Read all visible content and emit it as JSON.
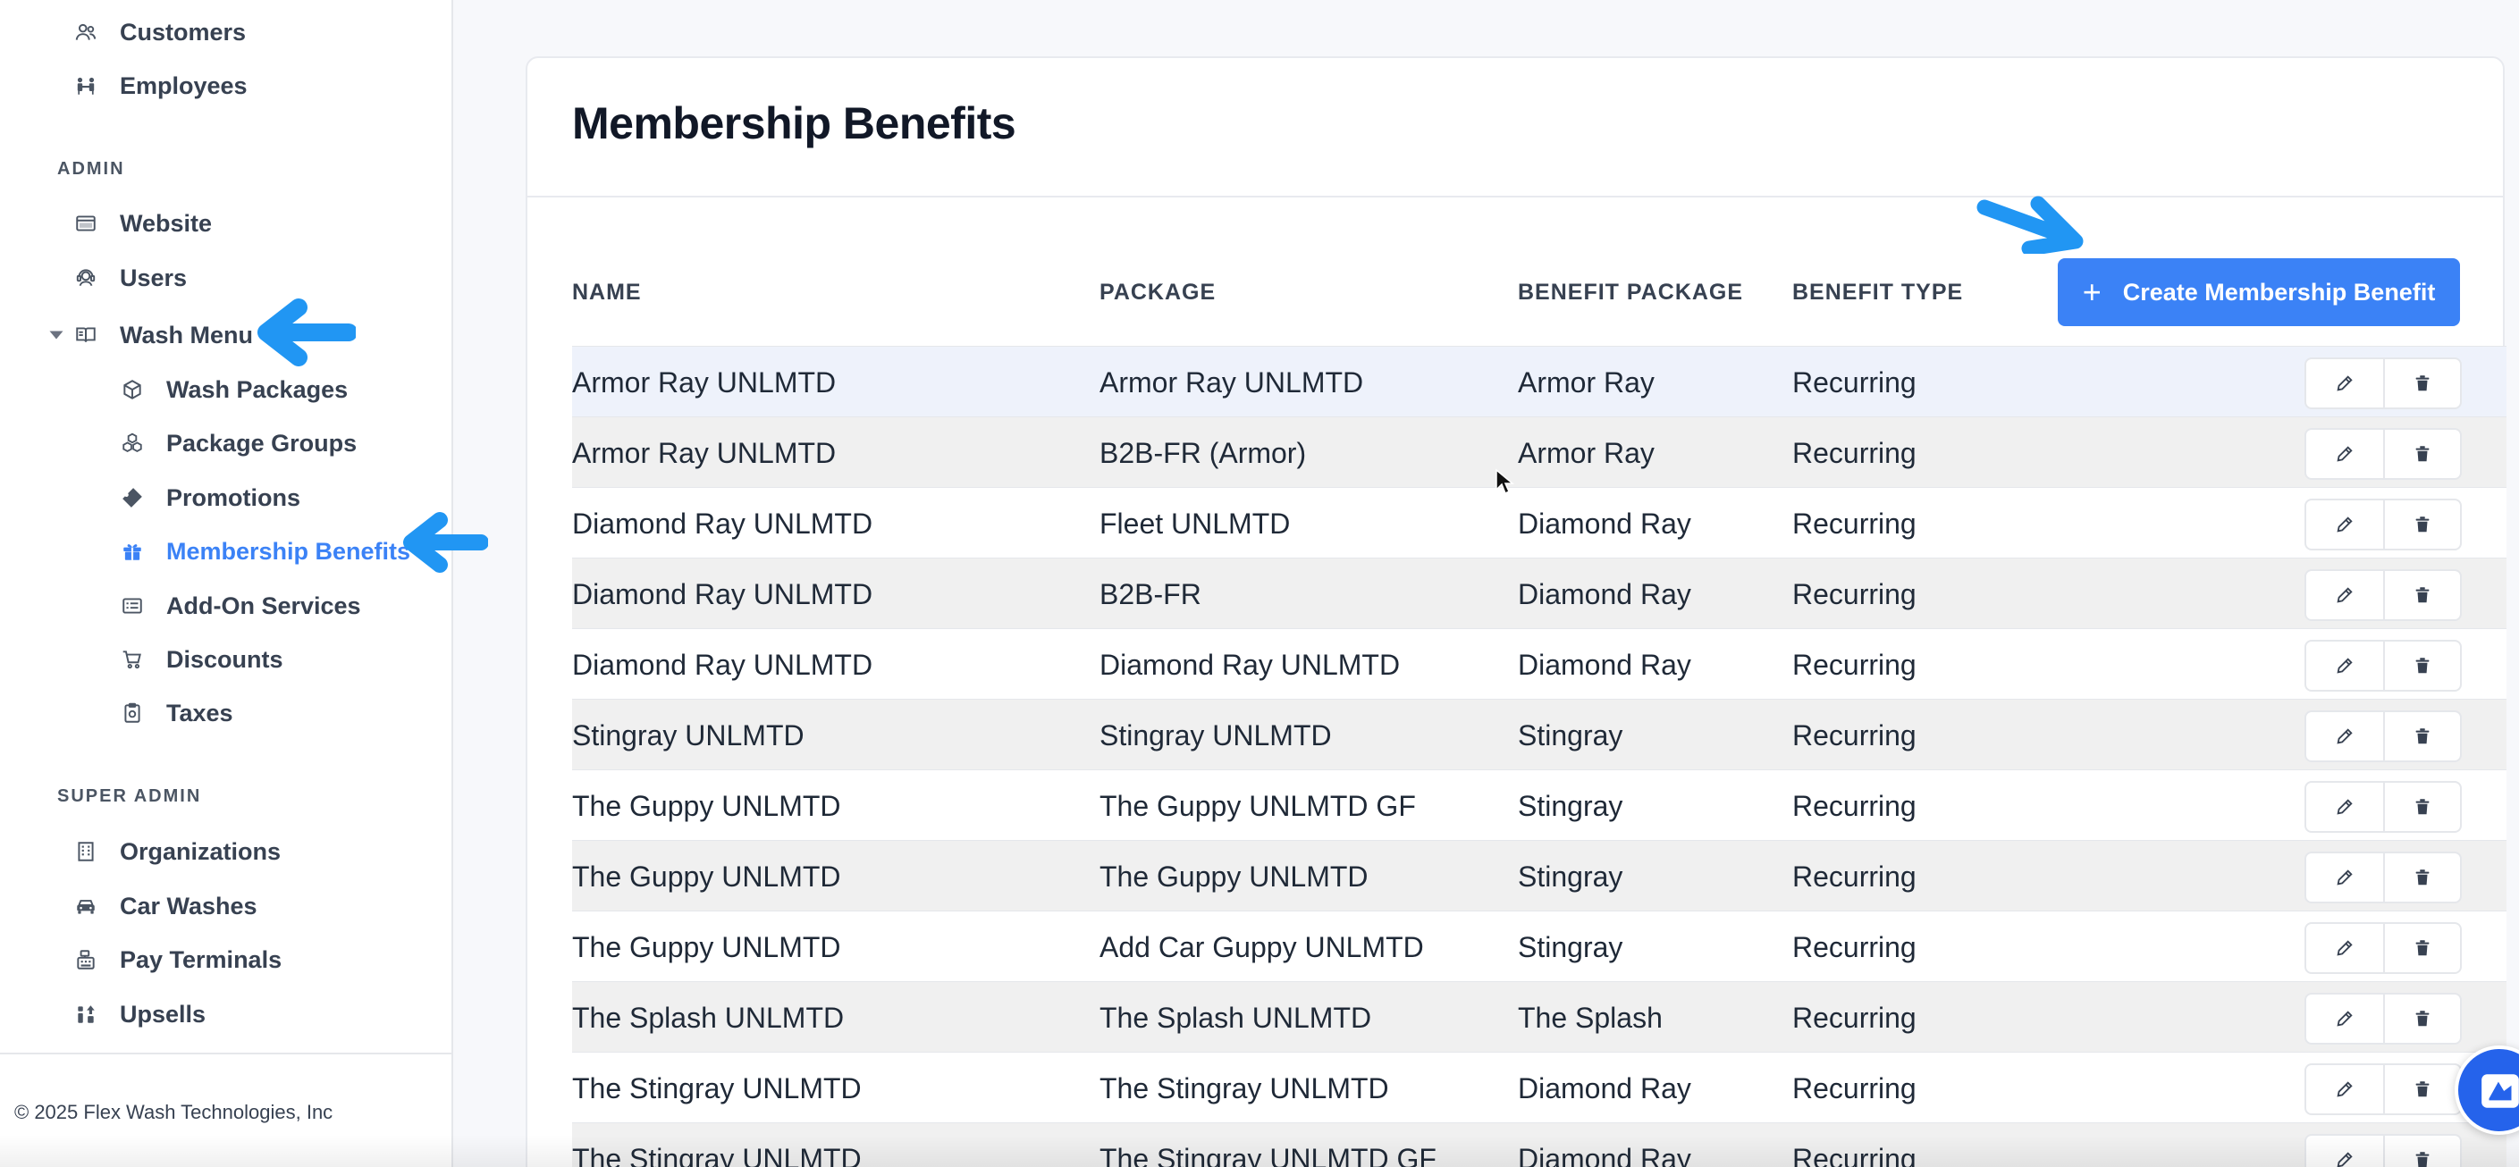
{
  "sidebar": {
    "top_items": [
      {
        "label": "Customers",
        "icon": "users-icon"
      },
      {
        "label": "Employees",
        "icon": "employees-icon"
      }
    ],
    "admin_label": "ADMIN",
    "admin_items": [
      {
        "label": "Website",
        "icon": "browser-icon"
      },
      {
        "label": "Users",
        "icon": "user-headset-icon"
      },
      {
        "label": "Wash Menu",
        "icon": "book-open-icon",
        "expanded": true
      }
    ],
    "wash_menu_items": [
      {
        "label": "Wash Packages",
        "icon": "cube-icon"
      },
      {
        "label": "Package Groups",
        "icon": "cubes-icon"
      },
      {
        "label": "Promotions",
        "icon": "ticket-icon"
      },
      {
        "label": "Membership Benefits",
        "icon": "gift-icon",
        "active": true
      },
      {
        "label": "Add-On Services",
        "icon": "list-card-icon"
      },
      {
        "label": "Discounts",
        "icon": "cart-icon"
      },
      {
        "label": "Taxes",
        "icon": "receipt-icon"
      }
    ],
    "super_admin_label": "SUPER ADMIN",
    "super_admin_items": [
      {
        "label": "Organizations",
        "icon": "building-icon"
      },
      {
        "label": "Car Washes",
        "icon": "car-icon"
      },
      {
        "label": "Pay Terminals",
        "icon": "cash-register-icon"
      },
      {
        "label": "Upsells",
        "icon": "upsell-icon"
      }
    ],
    "copyright": "© 2025 Flex Wash Technologies, Inc"
  },
  "main": {
    "title": "Membership Benefits",
    "columns": [
      "NAME",
      "PACKAGE",
      "BENEFIT PACKAGE",
      "BENEFIT TYPE"
    ],
    "create_button_label": "Create Membership Benefit",
    "rows": [
      [
        "Armor Ray UNLMTD",
        "Armor Ray UNLMTD",
        "Armor Ray",
        "Recurring"
      ],
      [
        "Armor Ray UNLMTD",
        "B2B-FR (Armor)",
        "Armor Ray",
        "Recurring"
      ],
      [
        "Diamond Ray UNLMTD",
        "Fleet UNLMTD",
        "Diamond Ray",
        "Recurring"
      ],
      [
        "Diamond Ray UNLMTD",
        "B2B-FR",
        "Diamond Ray",
        "Recurring"
      ],
      [
        "Diamond Ray UNLMTD",
        "Diamond Ray UNLMTD",
        "Diamond Ray",
        "Recurring"
      ],
      [
        "Stingray UNLMTD",
        "Stingray UNLMTD",
        "Stingray",
        "Recurring"
      ],
      [
        "The Guppy UNLMTD",
        "The Guppy UNLMTD GF",
        "Stingray",
        "Recurring"
      ],
      [
        "The Guppy UNLMTD",
        "The Guppy UNLMTD",
        "Stingray",
        "Recurring"
      ],
      [
        "The Guppy UNLMTD",
        "Add Car Guppy UNLMTD",
        "Stingray",
        "Recurring"
      ],
      [
        "The Splash UNLMTD",
        "The Splash UNLMTD",
        "The Splash",
        "Recurring"
      ],
      [
        "The Stingray UNLMTD",
        "The Stingray UNLMTD",
        "Diamond Ray",
        "Recurring"
      ],
      [
        "The Stingray UNLMTD",
        "The Stingray UNLMTD GF",
        "Diamond Ray",
        "Recurring"
      ]
    ]
  },
  "colors": {
    "accent": "#3b82f6",
    "annotation_arrow": "#2196f3",
    "row_highlight": "#eef2fb",
    "row_striped": "#f0f0f0"
  }
}
